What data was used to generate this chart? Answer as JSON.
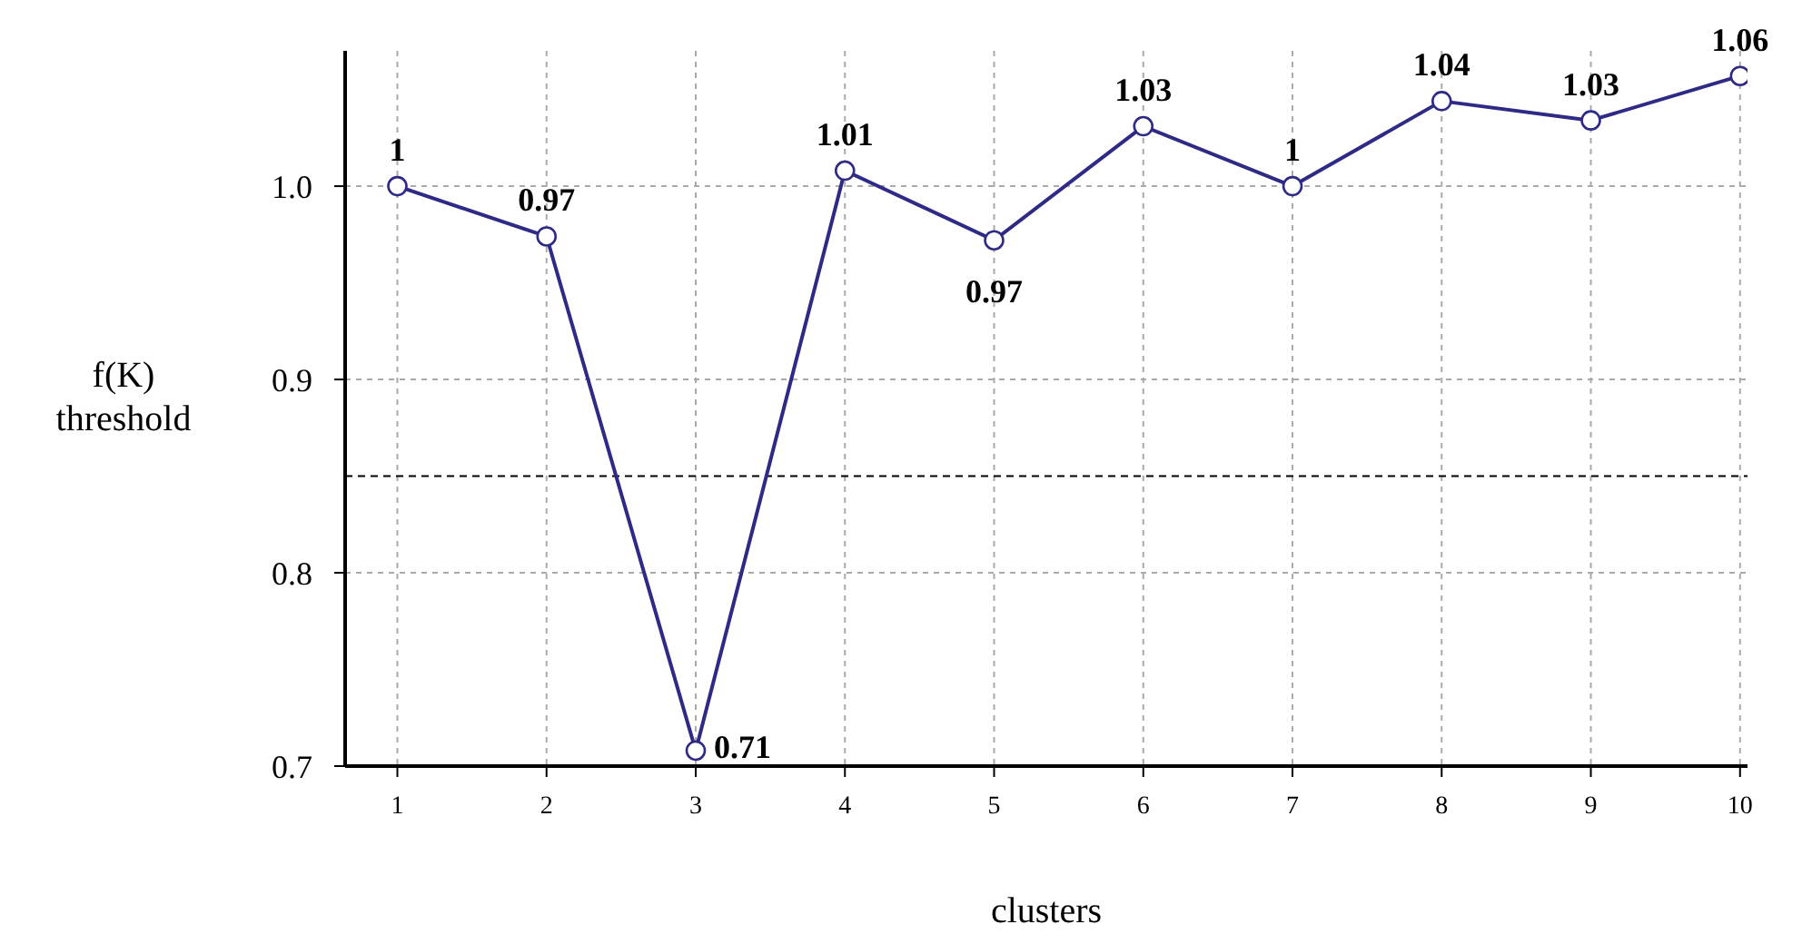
{
  "chart_data": {
    "type": "line",
    "xlabel": "clusters",
    "ylabel": "f(K)\nthreshold",
    "x": [
      1,
      2,
      3,
      4,
      5,
      6,
      7,
      8,
      9,
      10
    ],
    "series": [
      {
        "color": "#2e2a85",
        "values": [
          1.0,
          0.974,
          0.708,
          1.008,
          0.972,
          1.031,
          1.0,
          1.044,
          1.034,
          1.057
        ],
        "value_labels": [
          "1",
          "0.97",
          "0.71",
          "1.01",
          "0.97",
          "1.03",
          "1",
          "1.04",
          "1.03",
          "1.06"
        ]
      }
    ],
    "xlim": [
      0.65,
      10.05
    ],
    "xticks": [
      1,
      2,
      3,
      4,
      5,
      6,
      7,
      8,
      9,
      10
    ],
    "ylim": [
      0.7,
      1.07
    ],
    "yticks": [
      {
        "value": 0.7,
        "label": "0.7"
      },
      {
        "value": 0.8,
        "label": "0.8"
      },
      {
        "value": 0.9,
        "label": "0.9"
      },
      {
        "value": 1.0,
        "label": "1.0"
      }
    ],
    "ref_lines": [
      {
        "axis": "y",
        "value": 0.85,
        "color": "#000000",
        "line_style": "dashed"
      }
    ],
    "grid": true,
    "marker": "circle",
    "line_style": "solid",
    "legend": false
  }
}
